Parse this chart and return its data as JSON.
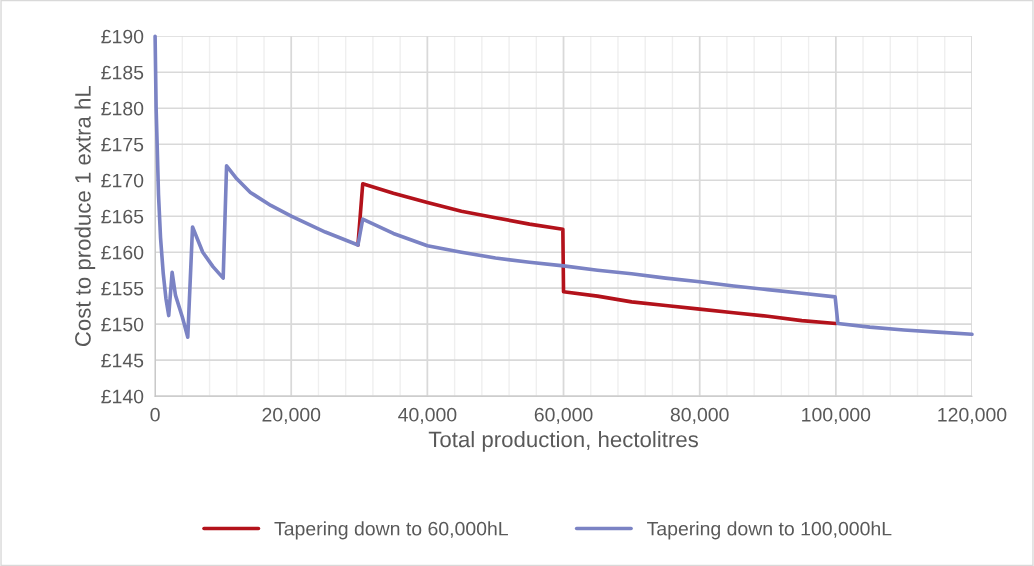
{
  "chart_data": {
    "type": "line",
    "xlabel": "Total production, hectolitres",
    "ylabel": "Cost to produce 1 extra hL",
    "xlim": [
      0,
      120000
    ],
    "ylim": [
      140,
      190
    ],
    "xticks": [
      0,
      {
        "value": 20000,
        "label": "20,000"
      },
      {
        "value": 40000,
        "label": "40,000"
      },
      {
        "value": 60000,
        "label": "60,000"
      },
      {
        "value": 80000,
        "label": "80,000"
      },
      {
        "value": 100000,
        "label": "100,000"
      },
      {
        "value": 120000,
        "label": "120,000"
      }
    ],
    "yticks": [
      {
        "value": 140,
        "label": "£140"
      },
      {
        "value": 145,
        "label": "£145"
      },
      {
        "value": 150,
        "label": "£150"
      },
      {
        "value": 155,
        "label": "£155"
      },
      {
        "value": 160,
        "label": "£160"
      },
      {
        "value": 165,
        "label": "£165"
      },
      {
        "value": 170,
        "label": "£170"
      },
      {
        "value": 175,
        "label": "£175"
      },
      {
        "value": 180,
        "label": "£180"
      },
      {
        "value": 185,
        "label": "£185"
      },
      {
        "value": 190,
        "label": "£190"
      }
    ],
    "grid": true,
    "legend": "bottom",
    "marker": "none",
    "line_style": "solid",
    "series": [
      {
        "name": "Tapering down to 60,000hL",
        "color": "#b3121b",
        "x": [
          29800,
          30500,
          35000,
          40000,
          45000,
          50000,
          55000,
          59900,
          60000,
          65000,
          70000,
          75000,
          80000,
          85000,
          90000,
          95000,
          100000
        ],
        "values": [
          161,
          169.5,
          168.2,
          166.9,
          165.7,
          164.8,
          163.9,
          163.2,
          154.5,
          153.9,
          153.1,
          152.6,
          152.1,
          151.6,
          151.1,
          150.5,
          150.1
        ]
      },
      {
        "name": "Tapering down to 100,000hL",
        "color": "#7b83c4",
        "x": [
          0,
          150,
          300,
          500,
          800,
          1200,
          1600,
          2000,
          2500,
          3000,
          4000,
          4800,
          5500,
          7000,
          8500,
          10000,
          10500,
          12000,
          14000,
          17000,
          20000,
          25000,
          29800,
          30500,
          35000,
          40000,
          45000,
          50000,
          55000,
          60000,
          65000,
          70000,
          75000,
          80000,
          85000,
          90000,
          95000,
          99900,
          100300,
          105000,
          110000,
          115000,
          120000
        ],
        "values": [
          190,
          180,
          175,
          168,
          162,
          157,
          153.5,
          151.2,
          157.2,
          154,
          151,
          148.2,
          163.5,
          160,
          158,
          156.4,
          172,
          170.2,
          168.3,
          166.5,
          165,
          162.8,
          161,
          164.6,
          162.6,
          160.9,
          160,
          159.2,
          158.6,
          158.1,
          157.5,
          157,
          156.4,
          155.9,
          155.3,
          154.8,
          154.3,
          153.8,
          150.1,
          149.6,
          149.2,
          148.9,
          148.6
        ]
      }
    ]
  }
}
